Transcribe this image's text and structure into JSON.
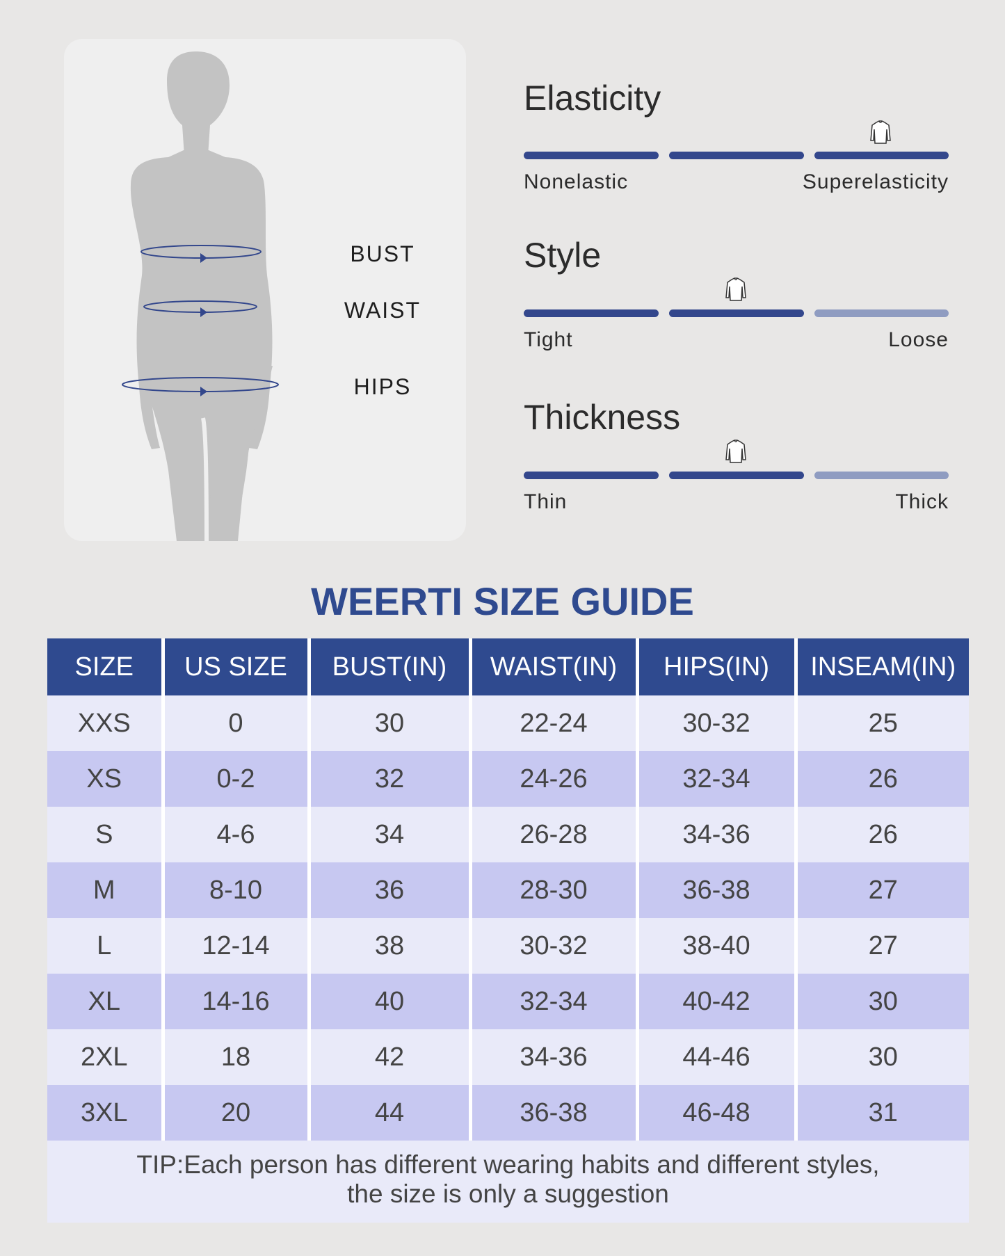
{
  "measurements": {
    "bust": "BUST",
    "waist": "WAIST",
    "hips": "HIPS"
  },
  "attributes": [
    {
      "title": "Elasticity",
      "left": "Nonelastic",
      "right": "Superelasticity",
      "level_segments_filled": 3,
      "segments_total": 3,
      "marker_segment": 3
    },
    {
      "title": "Style",
      "left": "Tight",
      "right": "Loose",
      "level_segments_filled": 2,
      "segments_total": 3,
      "marker_segment": 2
    },
    {
      "title": "Thickness",
      "left": "Thin",
      "right": "Thick",
      "level_segments_filled": 2,
      "segments_total": 3,
      "marker_segment": 2
    }
  ],
  "guide": {
    "title": "WEERTI SIZE GUIDE",
    "headers": [
      "SIZE",
      "US SIZE",
      "BUST(IN)",
      "WAIST(IN)",
      "HIPS(IN)",
      "INSEAM(IN)"
    ],
    "rows": [
      [
        "XXS",
        "0",
        "30",
        "22-24",
        "30-32",
        "25"
      ],
      [
        "XS",
        "0-2",
        "32",
        "24-26",
        "32-34",
        "26"
      ],
      [
        "S",
        "4-6",
        "34",
        "26-28",
        "34-36",
        "26"
      ],
      [
        "M",
        "8-10",
        "36",
        "28-30",
        "36-38",
        "27"
      ],
      [
        "L",
        "12-14",
        "38",
        "30-32",
        "38-40",
        "27"
      ],
      [
        "XL",
        "14-16",
        "40",
        "32-34",
        "40-42",
        "30"
      ],
      [
        "2XL",
        "18",
        "42",
        "34-36",
        "44-46",
        "30"
      ],
      [
        "3XL",
        "20",
        "44",
        "36-38",
        "46-48",
        "31"
      ]
    ],
    "tip_line1": "TIP:Each person has different wearing habits and different styles,",
    "tip_line2": "the size is only a suggestion"
  },
  "colors": {
    "accent": "#2f4a8f",
    "bar_filled": "#33478c",
    "bar_empty": "#8f9cc1",
    "row_light": "#e9eaf9",
    "row_dark": "#c7c8f1"
  },
  "icons": [
    "body-silhouette-icon",
    "shirt-icon"
  ]
}
